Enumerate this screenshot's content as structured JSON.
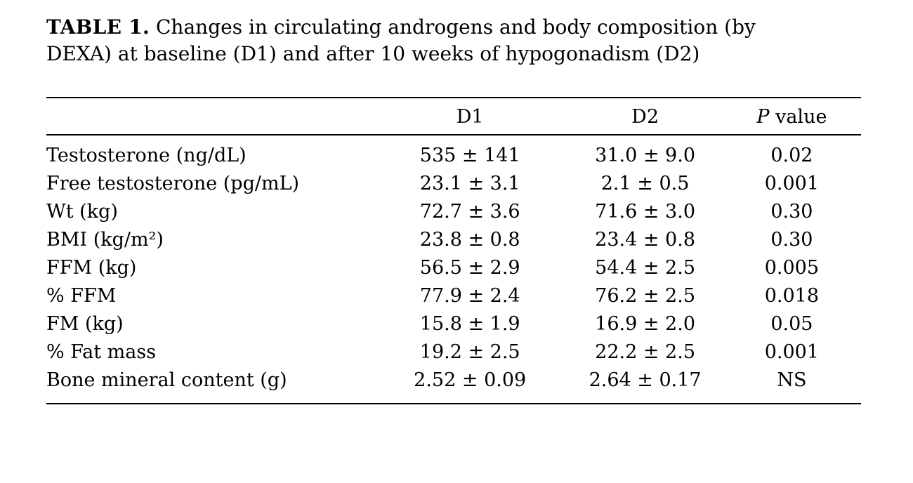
{
  "caption": {
    "label": "TABLE 1.",
    "text": " Changes in circulating androgens and body composition (by DEXA) at baseline (D1) and after 10 weeks of hypogonadism (D2)"
  },
  "table": {
    "header": {
      "d1": "D1",
      "d2": "D2",
      "p_italic": "P",
      "p_rest": " value"
    },
    "rows": [
      {
        "label": "Testosterone (ng/dL)",
        "d1": "535 ± 141",
        "d2": "31.0 ± 9.0",
        "p": "0.02"
      },
      {
        "label": "Free testosterone (pg/mL)",
        "d1": "23.1 ± 3.1",
        "d2": "2.1 ± 0.5",
        "p": "0.001"
      },
      {
        "label": "Wt (kg)",
        "d1": "72.7 ± 3.6",
        "d2": "71.6 ± 3.0",
        "p": "0.30"
      },
      {
        "label": "BMI (kg/m²)",
        "d1": "23.8 ± 0.8",
        "d2": "23.4 ± 0.8",
        "p": "0.30"
      },
      {
        "label": "FFM (kg)",
        "d1": "56.5 ± 2.9",
        "d2": "54.4 ± 2.5",
        "p": "0.005"
      },
      {
        "label": "% FFM",
        "d1": "77.9 ± 2.4",
        "d2": "76.2 ± 2.5",
        "p": "0.018"
      },
      {
        "label": "FM (kg)",
        "d1": "15.8 ± 1.9",
        "d2": "16.9 ± 2.0",
        "p": "0.05"
      },
      {
        "label": "% Fat mass",
        "d1": "19.2 ± 2.5",
        "d2": "22.2 ± 2.5",
        "p": "0.001"
      },
      {
        "label": "Bone mineral content (g)",
        "d1": "2.52 ± 0.09",
        "d2": "2.64 ± 0.17",
        "p": "NS"
      }
    ]
  }
}
